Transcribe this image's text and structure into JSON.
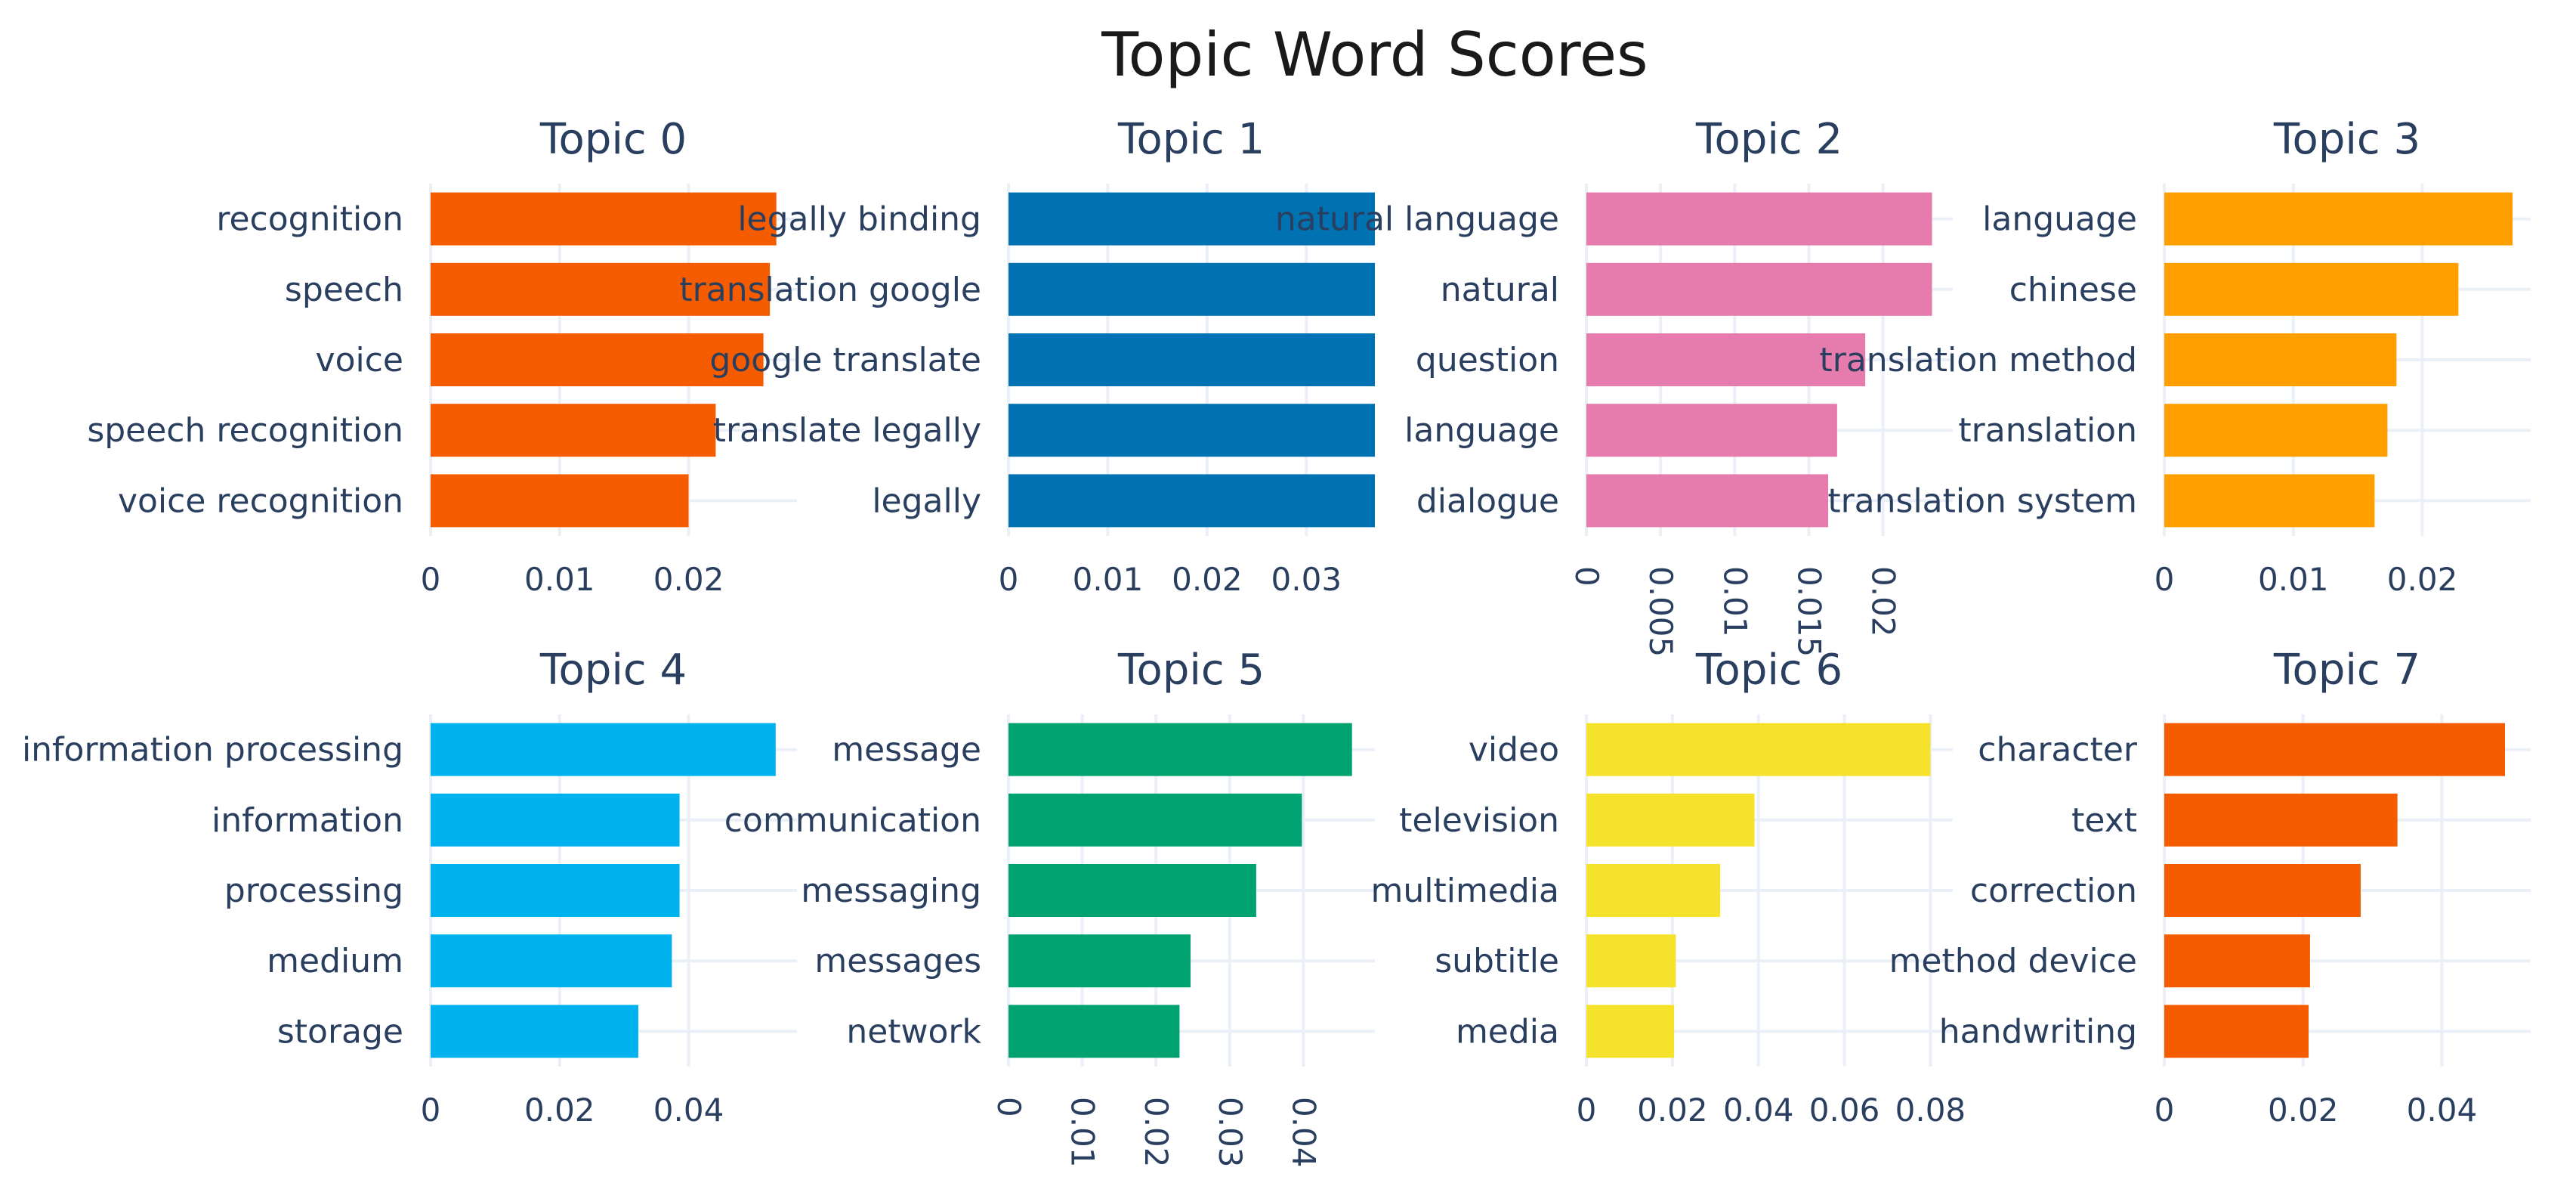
{
  "chart_data": {
    "type": "bar",
    "orientation": "horizontal",
    "title": "Topic Word Scores",
    "grid": true,
    "subplots": [
      {
        "title": "Topic 0",
        "color": "#F55C00",
        "xlim": [
          0,
          0.0284
        ],
        "labels": [
          "recognition",
          "speech",
          "voice",
          "speech recognition",
          "voice recognition"
        ],
        "values": [
          0.0268,
          0.0263,
          0.0258,
          0.0221,
          0.02
        ],
        "ticks": [
          {
            "v": 0,
            "t": "0"
          },
          {
            "v": 0.01,
            "t": "0.01"
          },
          {
            "v": 0.02,
            "t": "0.02"
          }
        ],
        "tick_rotate": false
      },
      {
        "title": "Topic 1",
        "color": "#0072B2",
        "xlim": [
          0,
          0.0369
        ],
        "labels": [
          "legally binding",
          "translation google",
          "google translate",
          "translate legally",
          "legally"
        ],
        "values": [
          0.0369,
          0.0369,
          0.0369,
          0.0369,
          0.0369
        ],
        "ticks": [
          {
            "v": 0,
            "t": "0"
          },
          {
            "v": 0.01,
            "t": "0.01"
          },
          {
            "v": 0.02,
            "t": "0.02"
          },
          {
            "v": 0.03,
            "t": "0.03"
          }
        ],
        "tick_rotate": false
      },
      {
        "title": "Topic 2",
        "color": "#E67CAD",
        "xlim": [
          0,
          0.0247
        ],
        "labels": [
          "natural language",
          "natural",
          "question",
          "language",
          "dialogue"
        ],
        "values": [
          0.0233,
          0.0233,
          0.0188,
          0.0169,
          0.0163
        ],
        "ticks": [
          {
            "v": 0,
            "t": "0"
          },
          {
            "v": 0.005,
            "t": "0.005"
          },
          {
            "v": 0.01,
            "t": "0.01"
          },
          {
            "v": 0.015,
            "t": "0.015"
          },
          {
            "v": 0.02,
            "t": "0.02"
          }
        ],
        "tick_rotate": true
      },
      {
        "title": "Topic 3",
        "color": "#FFA000",
        "xlim": [
          0,
          0.0284
        ],
        "labels": [
          "language",
          "chinese",
          "translation method",
          "translation",
          "translation system"
        ],
        "values": [
          0.027,
          0.0228,
          0.018,
          0.0173,
          0.0163
        ],
        "ticks": [
          {
            "v": 0,
            "t": "0"
          },
          {
            "v": 0.01,
            "t": "0.01"
          },
          {
            "v": 0.02,
            "t": "0.02"
          }
        ],
        "tick_rotate": false
      },
      {
        "title": "Topic 4",
        "color": "#00B2EE",
        "xlim": [
          0,
          0.0568
        ],
        "labels": [
          "information processing",
          "information",
          "processing",
          "medium",
          "storage"
        ],
        "values": [
          0.0535,
          0.0386,
          0.0386,
          0.0374,
          0.0322
        ],
        "ticks": [
          {
            "v": 0,
            "t": "0"
          },
          {
            "v": 0.02,
            "t": "0.02"
          },
          {
            "v": 0.04,
            "t": "0.04"
          }
        ],
        "tick_rotate": false
      },
      {
        "title": "Topic 5",
        "color": "#00A270",
        "xlim": [
          0,
          0.0497
        ],
        "labels": [
          "message",
          "communication",
          "messaging",
          "messages",
          "network"
        ],
        "values": [
          0.0466,
          0.0398,
          0.0336,
          0.0247,
          0.0232
        ],
        "ticks": [
          {
            "v": 0,
            "t": "0"
          },
          {
            "v": 0.01,
            "t": "0.01"
          },
          {
            "v": 0.02,
            "t": "0.02"
          },
          {
            "v": 0.03,
            "t": "0.03"
          },
          {
            "v": 0.04,
            "t": "0.04"
          }
        ],
        "tick_rotate": true
      },
      {
        "title": "Topic 6",
        "color": "#F5E22A",
        "xlim": [
          0,
          0.0852
        ],
        "labels": [
          "video",
          "television",
          "multimedia",
          "subtitle",
          "media"
        ],
        "values": [
          0.08,
          0.0391,
          0.0311,
          0.0208,
          0.0204
        ],
        "ticks": [
          {
            "v": 0,
            "t": "0"
          },
          {
            "v": 0.02,
            "t": "0.02"
          },
          {
            "v": 0.04,
            "t": "0.04"
          },
          {
            "v": 0.06,
            "t": "0.06"
          },
          {
            "v": 0.08,
            "t": "0.08"
          }
        ],
        "tick_rotate": false
      },
      {
        "title": "Topic 7",
        "color": "#F55C00",
        "xlim": [
          0,
          0.0528
        ],
        "labels": [
          "character",
          "text",
          "correction",
          "method device",
          "handwriting"
        ],
        "values": [
          0.0491,
          0.0336,
          0.0283,
          0.021,
          0.0208
        ],
        "ticks": [
          {
            "v": 0,
            "t": "0"
          },
          {
            "v": 0.02,
            "t": "0.02"
          },
          {
            "v": 0.04,
            "t": "0.04"
          }
        ],
        "tick_rotate": false
      }
    ]
  }
}
